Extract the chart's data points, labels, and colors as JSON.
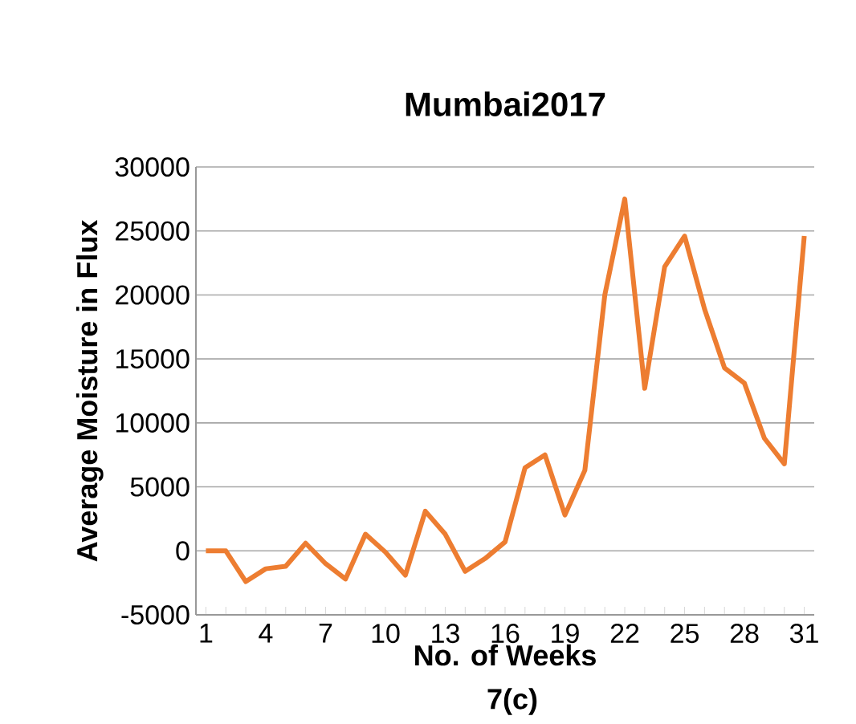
{
  "chart_data": {
    "type": "line",
    "title": "Mumbai2017",
    "xlabel": "No. of Weeks",
    "ylabel": "Average Moisture in Flux",
    "annotations": [
      "7(c)"
    ],
    "categories": [
      "1",
      null,
      null,
      "4",
      null,
      null,
      "7",
      null,
      null,
      "10",
      null,
      null,
      "13",
      null,
      null,
      "16",
      null,
      null,
      "19",
      null,
      null,
      "22",
      null,
      null,
      "25",
      null,
      null,
      "28",
      null,
      null,
      "31"
    ],
    "series": [
      {
        "color": "#ed7d31",
        "values": [
          0,
          0,
          -2400,
          -1400,
          -1200,
          600,
          -1000,
          -2200,
          1300,
          -100,
          -1900,
          3100,
          1300,
          -1600,
          -600,
          700,
          6500,
          7500,
          2800,
          6300,
          20000,
          27500,
          12700,
          22200,
          24600,
          18900,
          14300,
          13100,
          8800,
          6800,
          24600
        ]
      }
    ],
    "ylim": [
      -5000,
      30000
    ],
    "yticks": [
      -5000,
      0,
      5000,
      10000,
      15000,
      20000,
      25000,
      30000
    ],
    "grid": "y",
    "marker": "none",
    "line_style": "solid"
  }
}
